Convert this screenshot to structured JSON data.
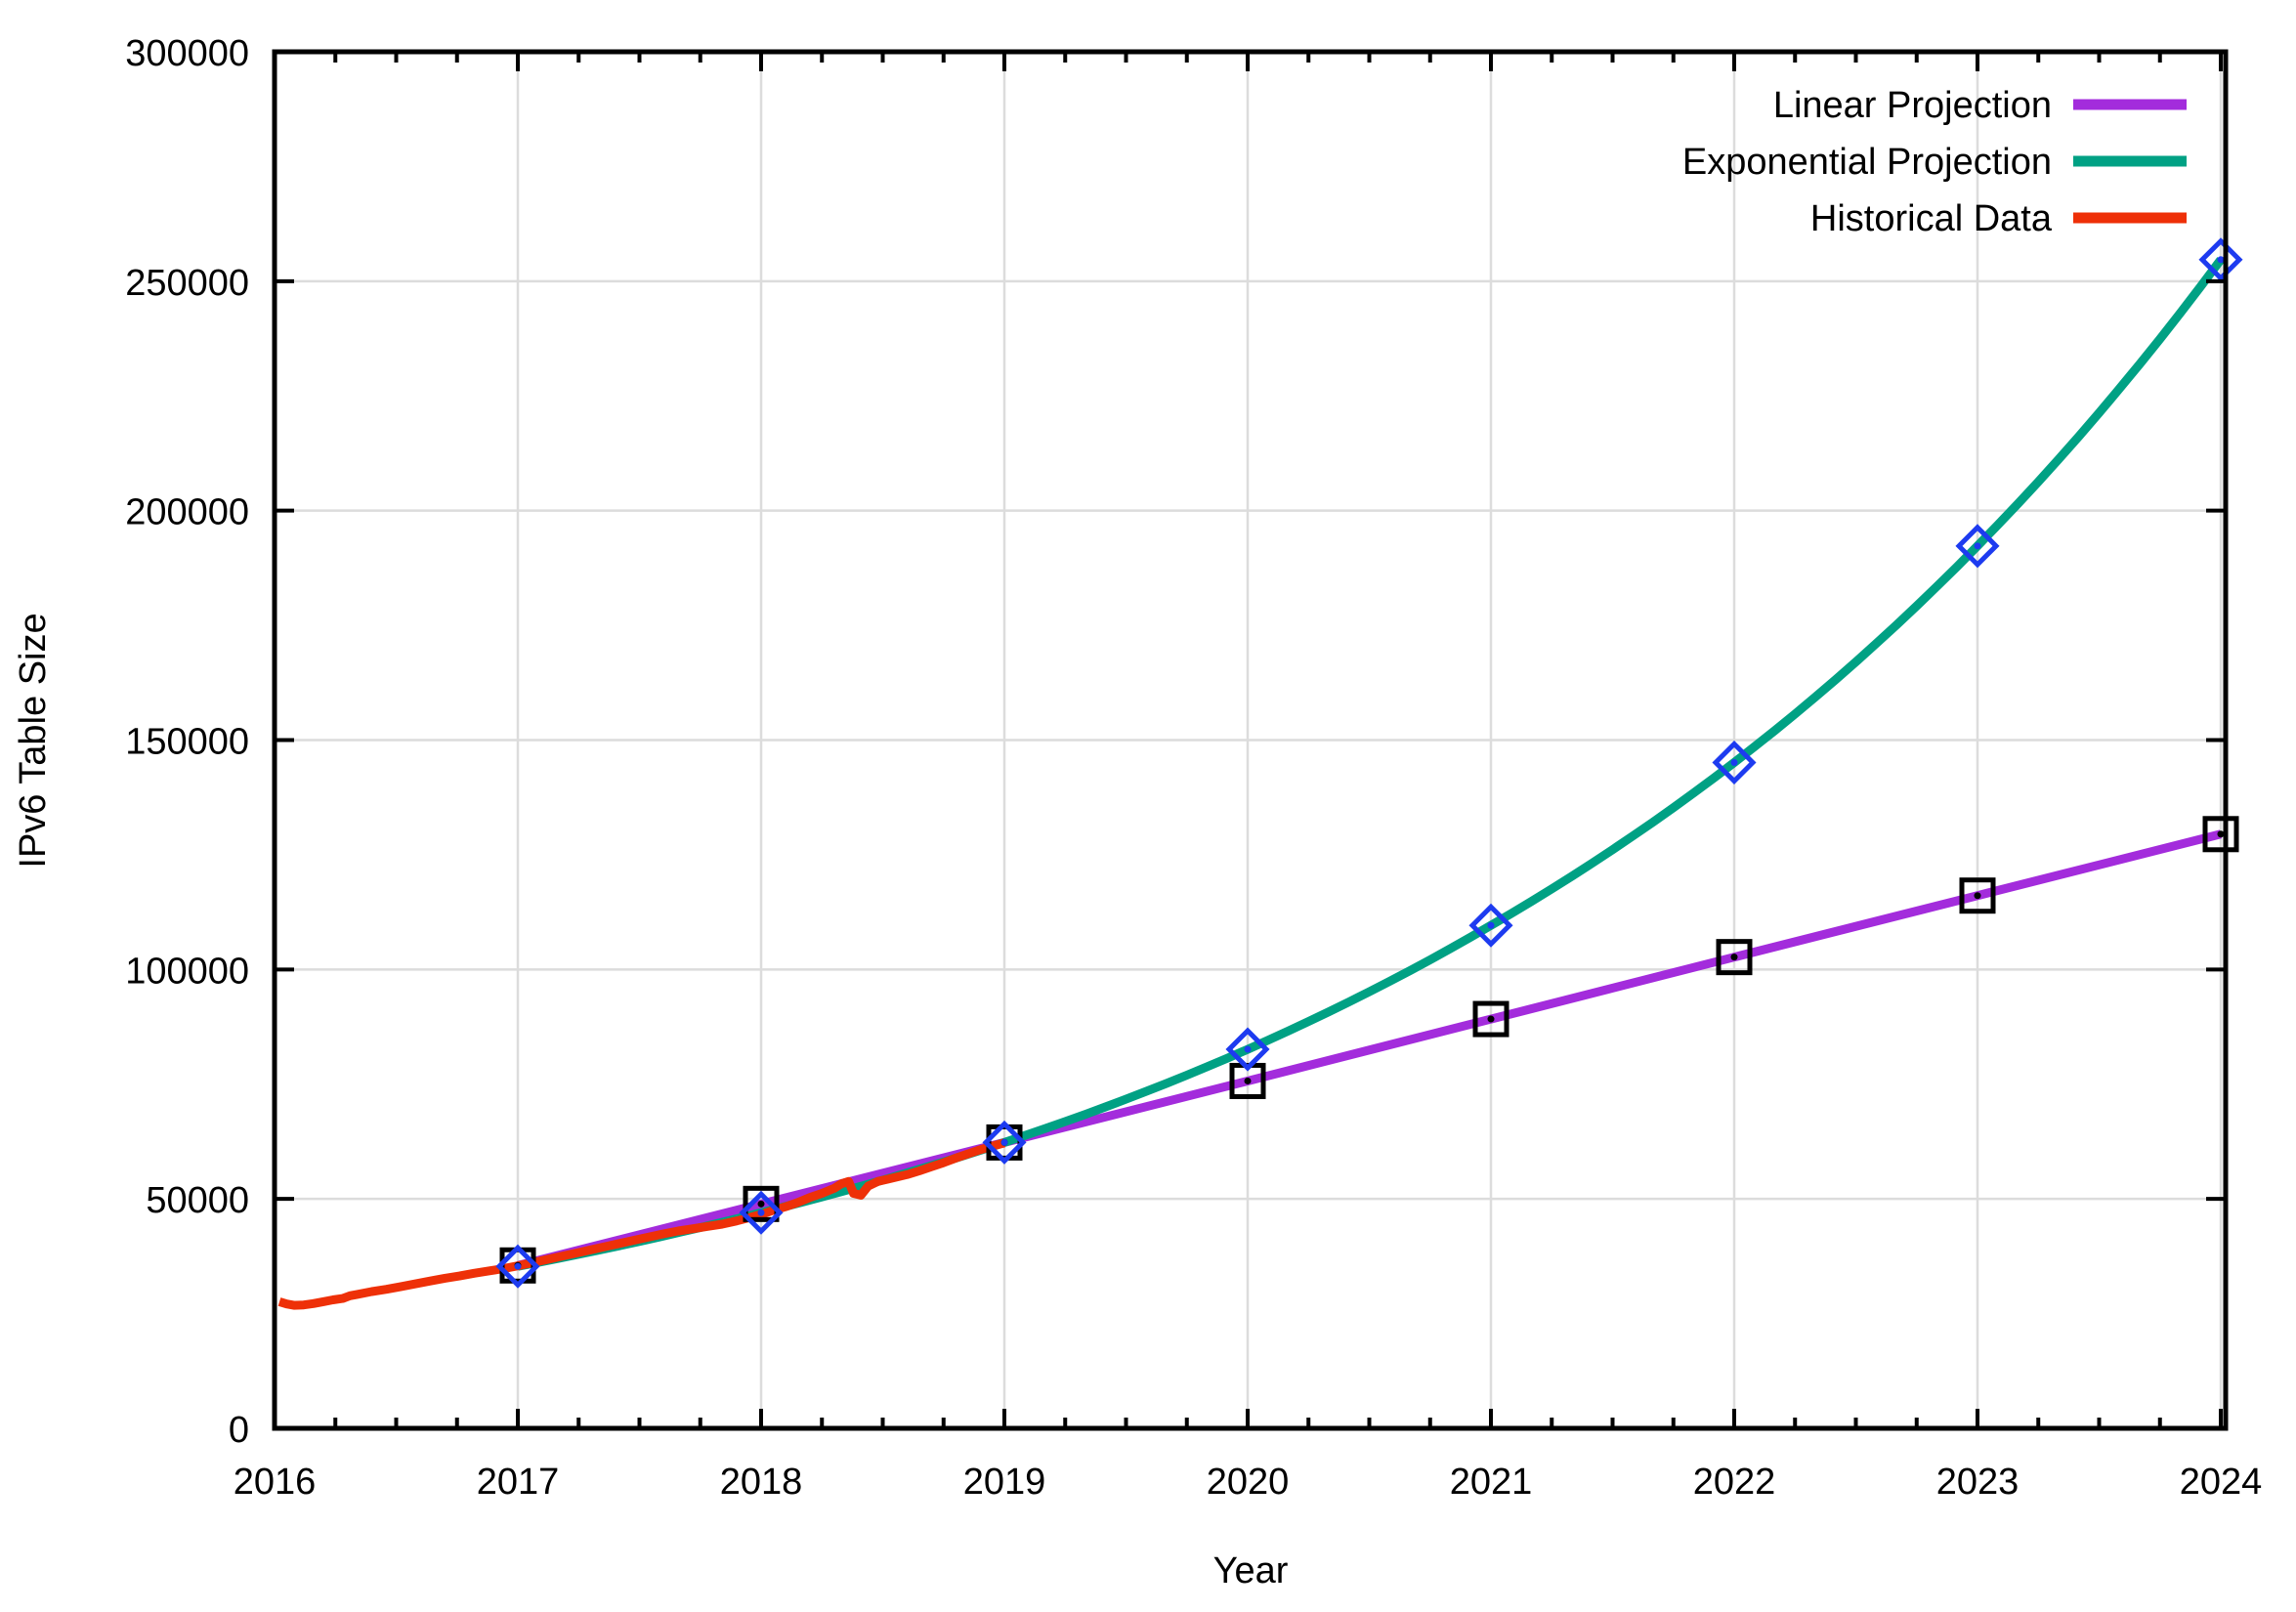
{
  "chart_data": {
    "type": "line",
    "title": "",
    "xlabel": "Year",
    "ylabel": "IPv6 Table Size",
    "xlim": [
      2016,
      2024
    ],
    "ylim": [
      0,
      300000
    ],
    "x_ticks": [
      2016,
      2017,
      2018,
      2019,
      2020,
      2021,
      2022,
      2023,
      2024
    ],
    "y_ticks": [
      0,
      50000,
      100000,
      150000,
      200000,
      250000,
      300000
    ],
    "x_minor_step": 0.25,
    "grid": true,
    "legend_position": "top-right",
    "colors": {
      "grid": "#DCDCDC",
      "axis": "#000000",
      "linear": "#A32CDC",
      "exponential": "#00A184",
      "historical": "#EE3008",
      "diamond_marker": "#1D3BF0",
      "square_marker": "#000000"
    },
    "series": [
      {
        "name": "Linear Projection",
        "color": "#A32CDC",
        "line_style": "linear",
        "marker": "square",
        "marker_color": "#000000",
        "x": [
          2017,
          2018,
          2019,
          2020,
          2021,
          2022,
          2023,
          2024
        ],
        "values": [
          35500,
          48900,
          62300,
          75700,
          89200,
          102700,
          116100,
          129500
        ]
      },
      {
        "name": "Exponential Projection",
        "color": "#00A184",
        "line_style": "exponential",
        "marker": "diamond",
        "marker_color": "#1D3BF0",
        "x": [
          2017,
          2018,
          2019,
          2020,
          2021,
          2022,
          2023,
          2024
        ],
        "values": [
          35300,
          47000,
          62300,
          82600,
          109600,
          145100,
          192300,
          254700
        ]
      },
      {
        "name": "Historical Data",
        "color": "#EE3008",
        "line_style": "raw",
        "marker": "none",
        "points": [
          [
            2016.02,
            27600
          ],
          [
            2016.05,
            27100
          ],
          [
            2016.08,
            26800
          ],
          [
            2016.12,
            26900
          ],
          [
            2016.16,
            27200
          ],
          [
            2016.2,
            27600
          ],
          [
            2016.24,
            28000
          ],
          [
            2016.28,
            28300
          ],
          [
            2016.31,
            28900
          ],
          [
            2016.34,
            29200
          ],
          [
            2016.4,
            29800
          ],
          [
            2016.46,
            30300
          ],
          [
            2016.52,
            30900
          ],
          [
            2016.58,
            31500
          ],
          [
            2016.64,
            32100
          ],
          [
            2016.7,
            32700
          ],
          [
            2016.76,
            33200
          ],
          [
            2016.82,
            33800
          ],
          [
            2016.88,
            34300
          ],
          [
            2016.94,
            34800
          ],
          [
            2017.0,
            35400
          ],
          [
            2017.06,
            36100
          ],
          [
            2017.12,
            36800
          ],
          [
            2017.18,
            37500
          ],
          [
            2017.24,
            38200
          ],
          [
            2017.3,
            38900
          ],
          [
            2017.36,
            39600
          ],
          [
            2017.42,
            40300
          ],
          [
            2017.48,
            41000
          ],
          [
            2017.54,
            41700
          ],
          [
            2017.6,
            42400
          ],
          [
            2017.66,
            43000
          ],
          [
            2017.72,
            43500
          ],
          [
            2017.78,
            44000
          ],
          [
            2017.84,
            44500
          ],
          [
            2017.9,
            45200
          ],
          [
            2017.95,
            45900
          ],
          [
            2018.0,
            46600
          ],
          [
            2018.05,
            47500
          ],
          [
            2018.1,
            48300
          ],
          [
            2018.15,
            49200
          ],
          [
            2018.2,
            50300
          ],
          [
            2018.25,
            51200
          ],
          [
            2018.3,
            52300
          ],
          [
            2018.33,
            53300
          ],
          [
            2018.36,
            53800
          ],
          [
            2018.38,
            51200
          ],
          [
            2018.41,
            50800
          ],
          [
            2018.44,
            52800
          ],
          [
            2018.48,
            53800
          ],
          [
            2018.52,
            54300
          ],
          [
            2018.56,
            54800
          ],
          [
            2018.6,
            55300
          ],
          [
            2018.65,
            56100
          ],
          [
            2018.7,
            57000
          ],
          [
            2018.75,
            57900
          ],
          [
            2018.8,
            58900
          ],
          [
            2018.85,
            59800
          ],
          [
            2018.9,
            60700
          ],
          [
            2018.95,
            61500
          ],
          [
            2019.0,
            62200
          ]
        ]
      }
    ]
  }
}
